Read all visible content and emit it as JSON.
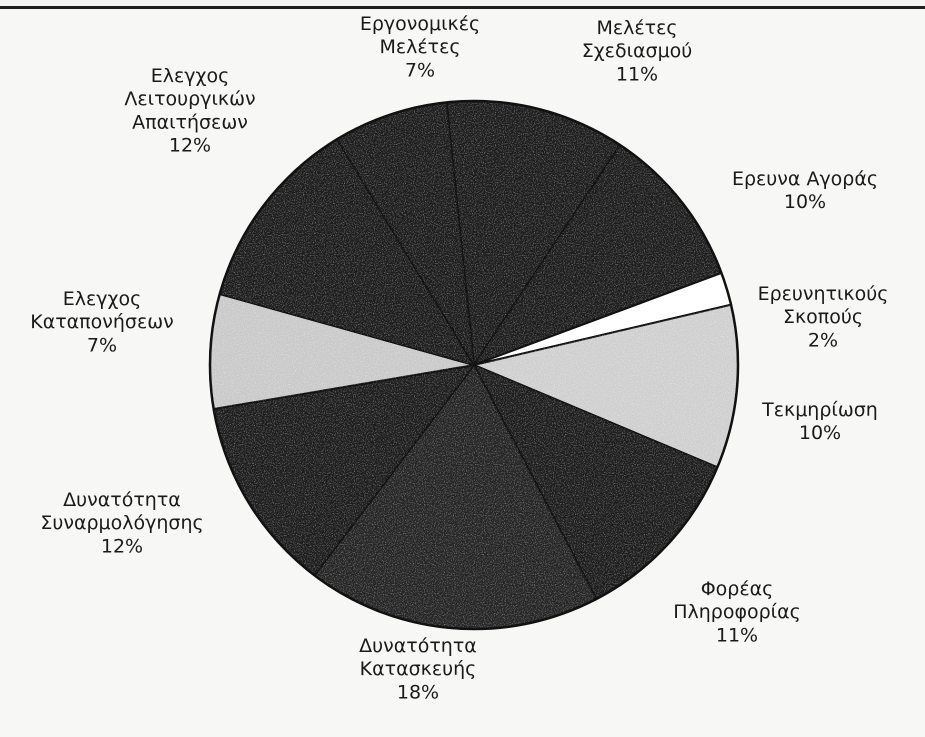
{
  "chart_data": {
    "type": "pie",
    "title": "",
    "start_angle_deg": 96,
    "direction": "clockwise",
    "slices": [
      {
        "label_lines": [
          "Μελέτες",
          "Σχεδιασμού"
        ],
        "value": 11,
        "value_label": "11%",
        "fill": "#1c1c1c"
      },
      {
        "label_lines": [
          "Ερευνα Αγοράς"
        ],
        "value": 10,
        "value_label": "10%",
        "fill": "#1c1c1c"
      },
      {
        "label_lines": [
          "Ερευνητικούς",
          "Σκοπούς"
        ],
        "value": 2,
        "value_label": "2%",
        "fill": "#ffffff"
      },
      {
        "label_lines": [
          "Τεκμηρίωση"
        ],
        "value": 10,
        "value_label": "10%",
        "fill": "#cfcfcf"
      },
      {
        "label_lines": [
          "Φορέας",
          "Πληροφορίας"
        ],
        "value": 11,
        "value_label": "11%",
        "fill": "#1c1c1c"
      },
      {
        "label_lines": [
          "Δυνατότητα",
          "Κατασκευής"
        ],
        "value": 18,
        "value_label": "18%",
        "fill": "#242424"
      },
      {
        "label_lines": [
          "Δυνατότητα",
          "Συναρμολόγησης"
        ],
        "value": 12,
        "value_label": "12%",
        "fill": "#1c1c1c"
      },
      {
        "label_lines": [
          "Ελεγχος",
          "Καταπονήσεων"
        ],
        "value": 7,
        "value_label": "7%",
        "fill": "#c9c9c9"
      },
      {
        "label_lines": [
          "Ελεγχος",
          "Λειτουργικών",
          "Απαιτήσεων"
        ],
        "value": 12,
        "value_label": "12%",
        "fill": "#1c1c1c"
      },
      {
        "label_lines": [
          "Εργονομικές",
          "Μελέτες"
        ],
        "value": 7,
        "value_label": "7%",
        "fill": "#1c1c1c"
      }
    ]
  }
}
